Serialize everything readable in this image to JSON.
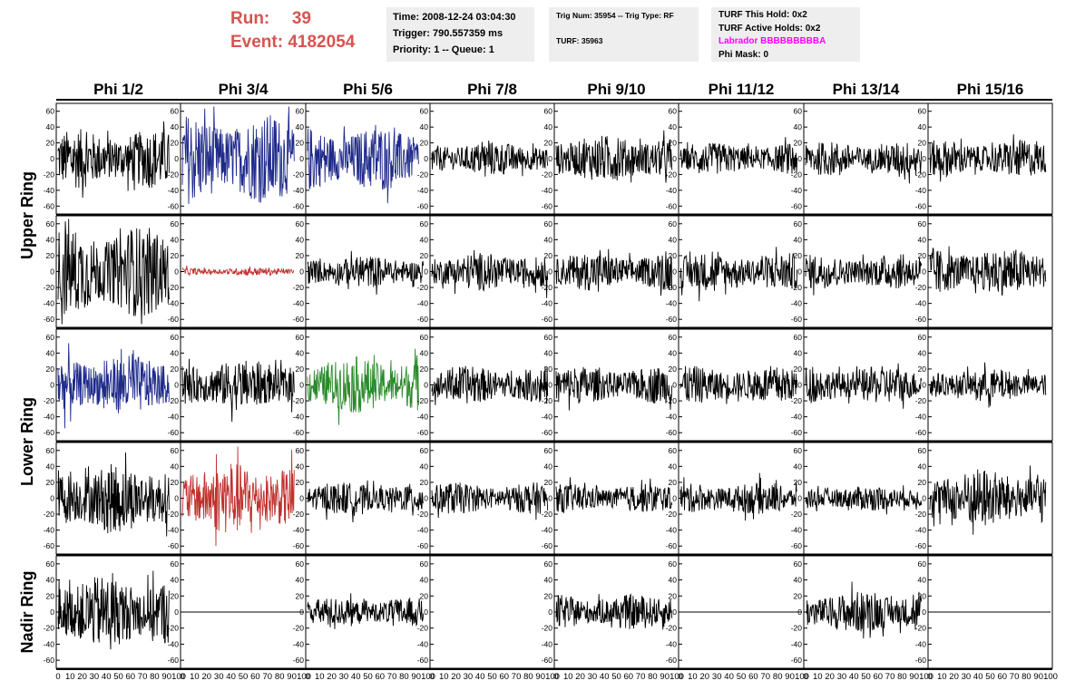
{
  "header": {
    "run_label": "Run:",
    "run_value": "39",
    "event_label": "Event:",
    "event_value": "4182054",
    "run_color": "#d9534f"
  },
  "info_box_1": {
    "time": "Time: 2008-12-24 03:04:30",
    "trigger": "Trigger: 790.557359 ms",
    "priority": "Priority: 1 -- Queue: 1"
  },
  "info_box_2": {
    "trig": "Trig Num: 35954 -- Trig Type: RF",
    "turf": "TURF: 35963"
  },
  "info_box_3": {
    "hold": "TURF This Hold: 0x2",
    "active_holds": "TURF Active Holds: 0x2",
    "labrador": "Labrador BBBBBBBBBA",
    "phi_mask": "Phi Mask: 0",
    "labrador_color": "#ff00ff"
  },
  "chart_data": {
    "type": "line",
    "columns": [
      "Phi 1/2",
      "Phi 3/4",
      "Phi 5/6",
      "Phi 7/8",
      "Phi 9/10",
      "Phi 11/12",
      "Phi 13/14",
      "Phi 15/16"
    ],
    "ring_labels": [
      {
        "label": "Upper Ring",
        "rows": [
          0,
          1
        ]
      },
      {
        "label": "Lower Ring",
        "rows": [
          2,
          3
        ]
      },
      {
        "label": "Nadir Ring",
        "rows": [
          4
        ]
      }
    ],
    "xlim": [
      0,
      100
    ],
    "ylim": [
      -70,
      70
    ],
    "y_ticks": [
      60,
      40,
      20,
      0,
      -20,
      -40,
      -60
    ],
    "x_tick_labels": [
      "0",
      "10",
      "20",
      "30",
      "40",
      "50",
      "60",
      "70",
      "80",
      "90",
      "100"
    ],
    "grid": false,
    "traces": [
      [
        {
          "color": "#000000",
          "amp": 38,
          "x_end": 92
        },
        {
          "color": "#1f2a8a",
          "amp": 58,
          "x_end": 92
        },
        {
          "color": "#1f2a8a",
          "amp": 42,
          "x_end": 92
        },
        {
          "color": "#000000",
          "amp": 22,
          "x_end": 96
        },
        {
          "color": "#000000",
          "amp": 30,
          "x_end": 96
        },
        {
          "color": "#000000",
          "amp": 20,
          "x_end": 96
        },
        {
          "color": "#000000",
          "amp": 22,
          "x_end": 96
        },
        {
          "color": "#000000",
          "amp": 24,
          "x_end": 96
        }
      ],
      [
        {
          "color": "#000000",
          "amp": 58,
          "x_end": 92
        },
        {
          "color": "#c0322f",
          "amp": 5,
          "x_end": 92
        },
        {
          "color": "#000000",
          "amp": 20,
          "x_end": 96
        },
        {
          "color": "#000000",
          "amp": 24,
          "x_end": 96
        },
        {
          "color": "#000000",
          "amp": 24,
          "x_end": 96
        },
        {
          "color": "#000000",
          "amp": 24,
          "x_end": 96
        },
        {
          "color": "#000000",
          "amp": 22,
          "x_end": 96
        },
        {
          "color": "#000000",
          "amp": 30,
          "x_end": 96
        }
      ],
      [
        {
          "color": "#1f2a8a",
          "amp": 38,
          "x_end": 92
        },
        {
          "color": "#000000",
          "amp": 32,
          "x_end": 92
        },
        {
          "color": "#2a8a2a",
          "amp": 36,
          "x_end": 92
        },
        {
          "color": "#000000",
          "amp": 24,
          "x_end": 96
        },
        {
          "color": "#000000",
          "amp": 24,
          "x_end": 96
        },
        {
          "color": "#000000",
          "amp": 24,
          "x_end": 96
        },
        {
          "color": "#000000",
          "amp": 24,
          "x_end": 96
        },
        {
          "color": "#000000",
          "amp": 20,
          "x_end": 96
        }
      ],
      [
        {
          "color": "#000000",
          "amp": 44,
          "x_end": 92
        },
        {
          "color": "#c0322f",
          "amp": 46,
          "x_end": 92
        },
        {
          "color": "#000000",
          "amp": 20,
          "x_end": 96
        },
        {
          "color": "#000000",
          "amp": 20,
          "x_end": 96
        },
        {
          "color": "#000000",
          "amp": 18,
          "x_end": 96
        },
        {
          "color": "#000000",
          "amp": 20,
          "x_end": 96
        },
        {
          "color": "#000000",
          "amp": 16,
          "x_end": 96
        },
        {
          "color": "#000000",
          "amp": 38,
          "x_end": 96
        }
      ],
      [
        {
          "color": "#000000",
          "amp": 46,
          "x_end": 92
        },
        {
          "color": "#000000",
          "amp": 0,
          "x_end": 100
        },
        {
          "color": "#000000",
          "amp": 18,
          "x_end": 96
        },
        null,
        {
          "color": "#000000",
          "amp": 22,
          "x_end": 96
        },
        {
          "color": "#000000",
          "amp": 0,
          "x_end": 100
        },
        {
          "color": "#000000",
          "amp": 26,
          "x_end": 96
        },
        {
          "color": "#000000",
          "amp": 0,
          "x_end": 100
        }
      ]
    ]
  }
}
